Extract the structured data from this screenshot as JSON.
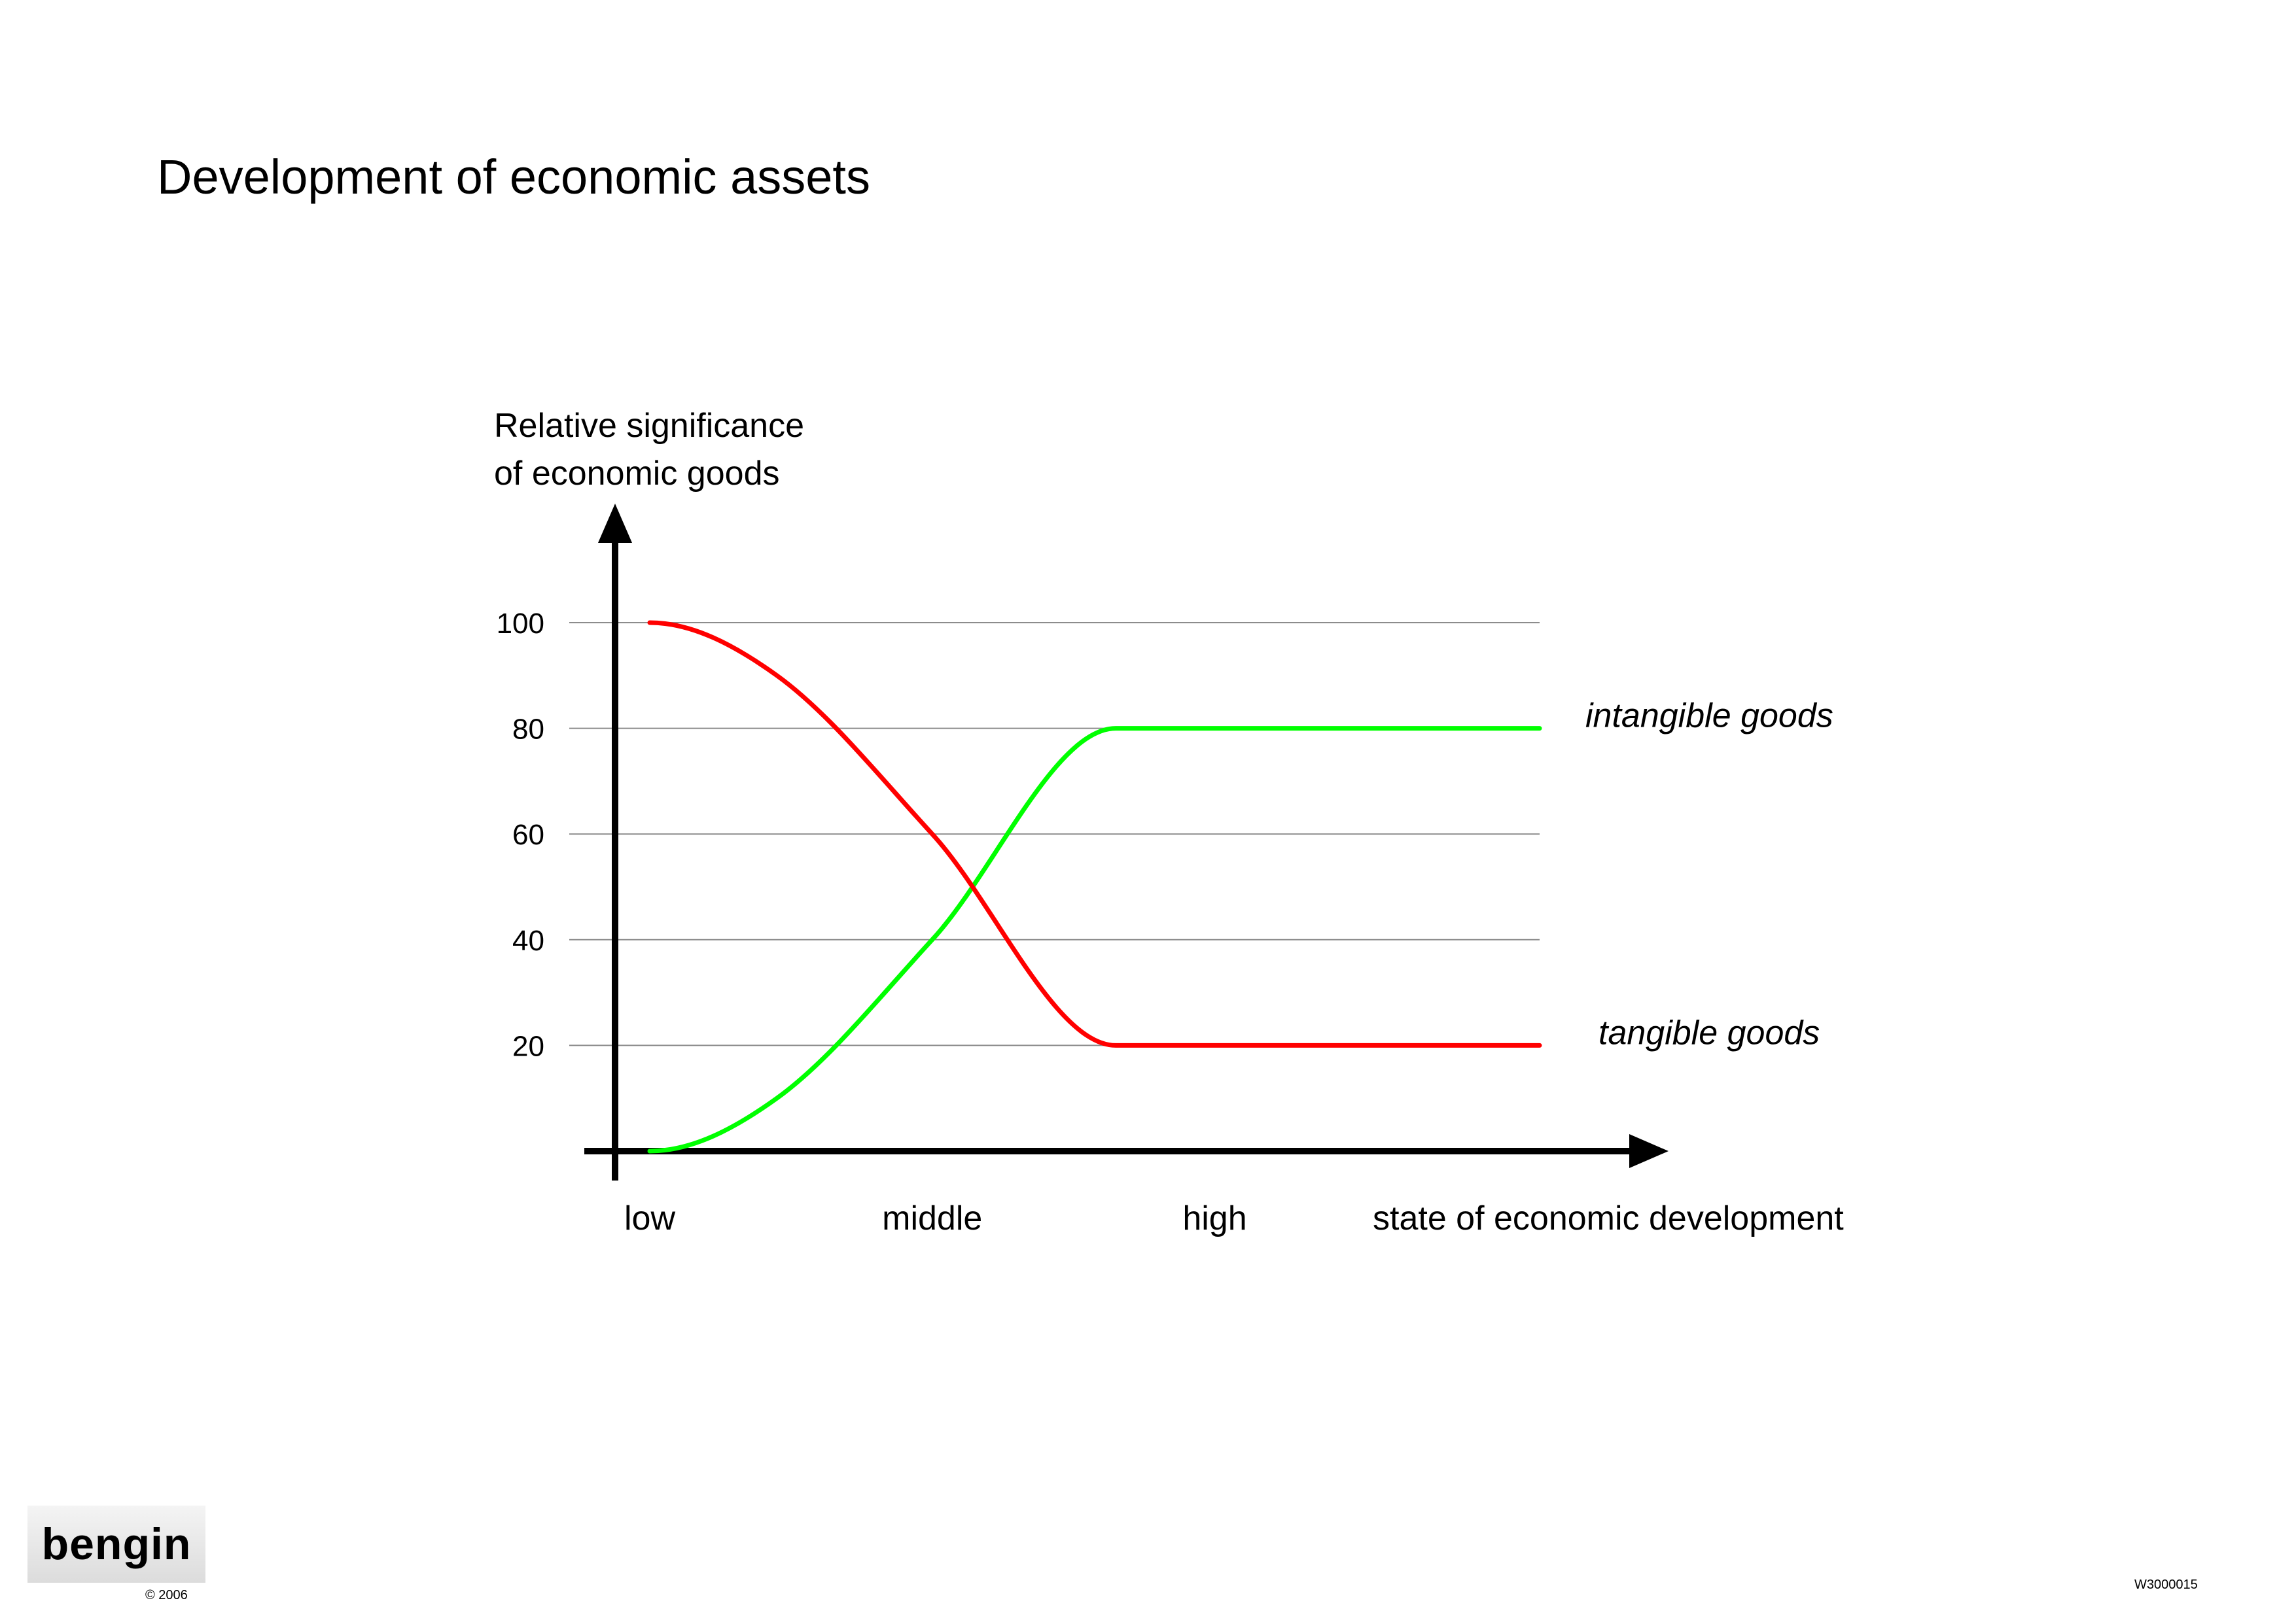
{
  "title": "Development of economic assets",
  "footer": {
    "logo": "bengin",
    "copyright": "© 2006",
    "doc_id": "W3000015"
  },
  "chart_data": {
    "type": "line",
    "ylabel_lines": [
      "Relative significance",
      "of economic goods"
    ],
    "xlabel": "state of economic development",
    "categories": [
      "low",
      "middle",
      "high"
    ],
    "x_positions": [
      0,
      1,
      2
    ],
    "xlim": [
      0,
      3.15
    ],
    "ylim": [
      0,
      100
    ],
    "yticks": [
      20,
      40,
      60,
      80,
      100
    ],
    "grid": true,
    "series": [
      {
        "name": "intangible goods",
        "color": "#00ff00",
        "points": [
          [
            0,
            0
          ],
          [
            0.45,
            10
          ],
          [
            1,
            40
          ],
          [
            1.65,
            80
          ],
          [
            2,
            80
          ],
          [
            3.15,
            80
          ]
        ]
      },
      {
        "name": "tangible goods",
        "color": "#ff0000",
        "points": [
          [
            0,
            100
          ],
          [
            0.45,
            90
          ],
          [
            1,
            60
          ],
          [
            1.65,
            20
          ],
          [
            2,
            20
          ],
          [
            3.15,
            20
          ]
        ]
      }
    ]
  }
}
